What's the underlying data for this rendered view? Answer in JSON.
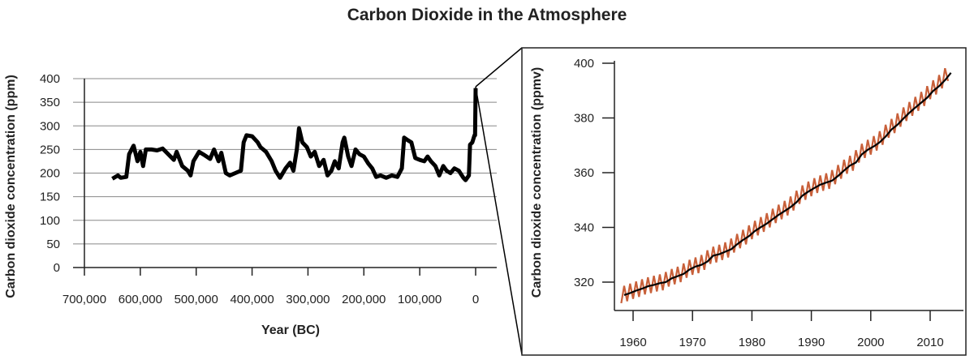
{
  "title": "Carbon Dioxide in the Atmosphere",
  "chart_data": [
    {
      "type": "line",
      "xlabel": "Year (BC)",
      "ylabel": "Carbon dioxide concentration (ppm)",
      "xlim": [
        700000,
        0
      ],
      "ylim": [
        0,
        400
      ],
      "x_ticks": [
        700000,
        600000,
        500000,
        400000,
        300000,
        200000,
        100000,
        0
      ],
      "x_tick_labels": [
        "700,000",
        "600,000",
        "500,000",
        "400,000",
        "300,000",
        "200,000",
        "100,000",
        "0"
      ],
      "y_ticks": [
        0,
        50,
        100,
        150,
        200,
        250,
        300,
        350,
        400
      ],
      "y_tick_labels": [
        "0",
        "50",
        "100",
        "150",
        "200",
        "250",
        "300",
        "350",
        "400"
      ],
      "grid": true,
      "line_color": "#000000",
      "x": [
        650000,
        640000,
        635000,
        625000,
        620000,
        612000,
        605000,
        600000,
        595000,
        590000,
        580000,
        570000,
        560000,
        550000,
        540000,
        535000,
        525000,
        515000,
        510000,
        505000,
        495000,
        485000,
        475000,
        468000,
        460000,
        455000,
        447000,
        440000,
        430000,
        420000,
        415000,
        410000,
        400000,
        390000,
        385000,
        375000,
        365000,
        358000,
        350000,
        340000,
        332000,
        326000,
        320000,
        316000,
        310000,
        302000,
        295000,
        288000,
        280000,
        272000,
        265000,
        258000,
        252000,
        245000,
        238000,
        235000,
        228000,
        222000,
        215000,
        208000,
        200000,
        192000,
        185000,
        178000,
        170000,
        160000,
        150000,
        140000,
        132000,
        128000,
        122000,
        115000,
        108000,
        100000,
        92000,
        86000,
        80000,
        72000,
        65000,
        58000,
        52000,
        45000,
        38000,
        30000,
        22000,
        18000,
        12000,
        10000,
        6000,
        2000,
        1000,
        0
      ],
      "y": [
        188,
        195,
        190,
        192,
        240,
        258,
        225,
        245,
        215,
        250,
        250,
        248,
        252,
        240,
        228,
        245,
        215,
        205,
        195,
        225,
        245,
        238,
        230,
        250,
        225,
        243,
        200,
        195,
        200,
        205,
        265,
        280,
        278,
        265,
        255,
        245,
        225,
        205,
        190,
        210,
        222,
        205,
        250,
        295,
        265,
        255,
        235,
        245,
        215,
        228,
        195,
        205,
        225,
        210,
        265,
        275,
        235,
        215,
        250,
        240,
        235,
        220,
        210,
        192,
        195,
        190,
        195,
        192,
        210,
        275,
        270,
        265,
        232,
        228,
        225,
        235,
        225,
        215,
        195,
        215,
        205,
        200,
        210,
        205,
        190,
        185,
        195,
        260,
        265,
        280,
        280,
        380
      ]
    },
    {
      "type": "line",
      "xlabel": "",
      "ylabel": "Carbon dioxide concentration (ppmv)",
      "xlim": [
        1955,
        2014
      ],
      "ylim": [
        310,
        402
      ],
      "x_ticks": [
        1960,
        1970,
        1980,
        1990,
        2000,
        2010
      ],
      "x_tick_labels": [
        "1960",
        "1970",
        "1980",
        "1990",
        "2000",
        "2010"
      ],
      "y_ticks": [
        320,
        340,
        360,
        380,
        400
      ],
      "y_tick_labels": [
        "320",
        "340",
        "360",
        "380",
        "400"
      ],
      "grid": false,
      "trend_color": "#000000",
      "seasonal_color": "#c8603a",
      "seasonal_amplitude": 3,
      "x": [
        1958,
        1959,
        1960,
        1961,
        1962,
        1963,
        1964,
        1965,
        1966,
        1967,
        1968,
        1969,
        1970,
        1971,
        1972,
        1973,
        1974,
        1975,
        1976,
        1977,
        1978,
        1979,
        1980,
        1981,
        1982,
        1983,
        1984,
        1985,
        1986,
        1987,
        1988,
        1989,
        1990,
        1991,
        1992,
        1993,
        1994,
        1995,
        1996,
        1997,
        1998,
        1999,
        2000,
        2001,
        2002,
        2003,
        2004,
        2005,
        2006,
        2007,
        2008,
        2009,
        2010,
        2011,
        2012,
        2013
      ],
      "y": [
        315.3,
        316,
        316.9,
        317.6,
        318.5,
        319,
        319.6,
        320,
        321.4,
        322.2,
        323,
        324.6,
        325.7,
        326.3,
        327.5,
        329.7,
        330.2,
        331.1,
        332,
        333.8,
        335.4,
        336.8,
        338.7,
        340.1,
        341.4,
        343,
        344.6,
        346,
        347.4,
        349.2,
        351.6,
        353.1,
        354.4,
        355.6,
        356.4,
        357.1,
        358.8,
        360.8,
        362.6,
        363.7,
        366.7,
        368.4,
        369.6,
        371.1,
        373.2,
        375.8,
        377.5,
        379.8,
        381.9,
        383.8,
        385.6,
        387.4,
        389.9,
        391.6,
        393.8,
        396.5
      ]
    }
  ]
}
